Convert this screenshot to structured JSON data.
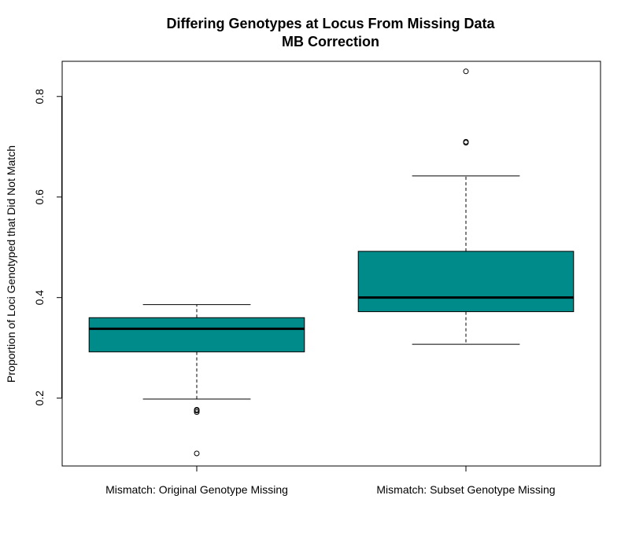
{
  "chart_data": {
    "type": "boxplot",
    "title": "Differing Genotypes at Locus From Missing Data",
    "subtitle": "MB Correction",
    "xlabel": "",
    "ylabel": "Proportion of Loci Genotyped that Did Not Match",
    "ylim": [
      0.065,
      0.87
    ],
    "yticks": [
      0.2,
      0.4,
      0.6,
      0.8
    ],
    "ytick_labels": [
      "0.2",
      "0.4",
      "0.6",
      "0.8"
    ],
    "grid": false,
    "fill_color": "#008b8b",
    "categories": [
      "Mismatch: Original Genotype Missing",
      "Mismatch: Subset Genotype Missing"
    ],
    "boxes": [
      {
        "whisker_low": 0.198,
        "q1": 0.292,
        "median": 0.338,
        "q3": 0.36,
        "whisker_high": 0.386,
        "outliers": [
          0.172,
          0.175,
          0.177,
          0.09
        ]
      },
      {
        "whisker_low": 0.307,
        "q1": 0.372,
        "median": 0.4,
        "q3": 0.492,
        "whisker_high": 0.642,
        "outliers": [
          0.708,
          0.71,
          0.85
        ]
      }
    ]
  }
}
